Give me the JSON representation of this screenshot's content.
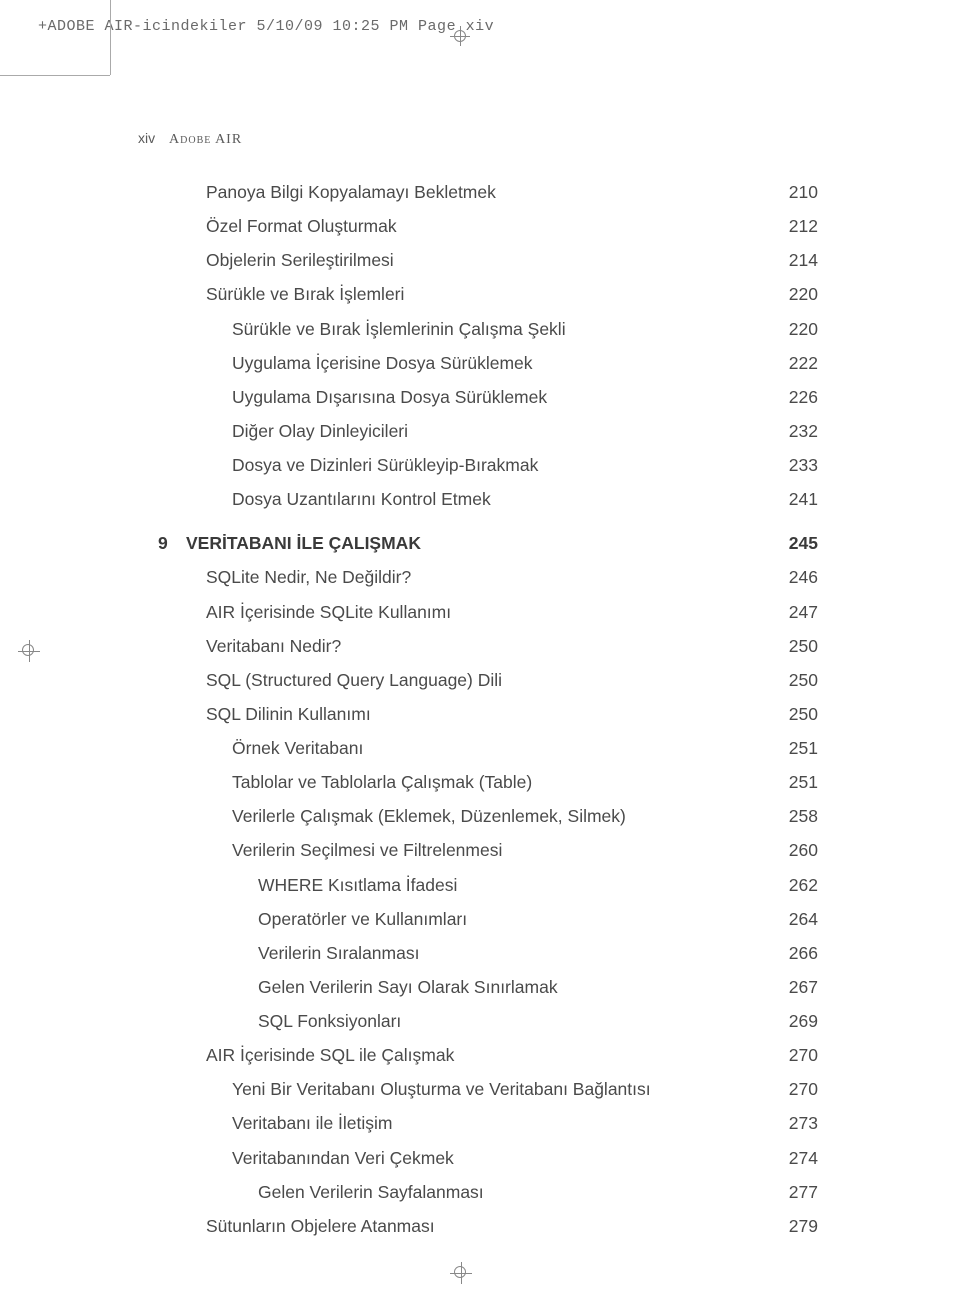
{
  "crop_header": "+ADOBE AIR-icindekiler  5/10/09  10:25 PM  Page xiv",
  "page_number": "xiv",
  "book_title": "Adobe AIR",
  "chapter": {
    "num": "9",
    "title": "VERİTABANI İLE ÇALIŞMAK",
    "page": "245"
  },
  "toc_pre": [
    {
      "label": "Panoya Bilgi Kopyalamayı Bekletmek",
      "page": "210",
      "indent": 1
    },
    {
      "label": "Özel Format Oluşturmak",
      "page": "212",
      "indent": 1
    },
    {
      "label": "Objelerin Serileştirilmesi",
      "page": "214",
      "indent": 1
    },
    {
      "label": "Sürükle ve Bırak İşlemleri",
      "page": "220",
      "indent": 1
    },
    {
      "label": "Sürükle ve Bırak İşlemlerinin Çalışma Şekli",
      "page": "220",
      "indent": 2
    },
    {
      "label": "Uygulama İçerisine Dosya Sürüklemek",
      "page": "222",
      "indent": 2
    },
    {
      "label": "Uygulama Dışarısına Dosya Sürüklemek",
      "page": "226",
      "indent": 2
    },
    {
      "label": "Diğer Olay Dinleyicileri",
      "page": "232",
      "indent": 2
    },
    {
      "label": "Dosya ve Dizinleri Sürükleyip-Bırakmak",
      "page": "233",
      "indent": 2
    },
    {
      "label": "Dosya Uzantılarını Kontrol Etmek",
      "page": "241",
      "indent": 2
    }
  ],
  "toc_post": [
    {
      "label": "SQLite Nedir, Ne Değildir?",
      "page": "246",
      "indent": 1
    },
    {
      "label": "AIR İçerisinde SQLite Kullanımı",
      "page": "247",
      "indent": 1
    },
    {
      "label": "Veritabanı Nedir?",
      "page": "250",
      "indent": 1
    },
    {
      "label": "SQL (Structured Query Language) Dili",
      "page": "250",
      "indent": 1
    },
    {
      "label": "SQL Dilinin Kullanımı",
      "page": "250",
      "indent": 1
    },
    {
      "label": "Örnek Veritabanı",
      "page": "251",
      "indent": 2
    },
    {
      "label": "Tablolar ve Tablolarla Çalışmak (Table)",
      "page": "251",
      "indent": 2
    },
    {
      "label": "Verilerle Çalışmak (Eklemek, Düzenlemek, Silmek)",
      "page": "258",
      "indent": 2
    },
    {
      "label": "Verilerin Seçilmesi ve Filtrelenmesi",
      "page": "260",
      "indent": 2
    },
    {
      "label": "WHERE Kısıtlama İfadesi",
      "page": "262",
      "indent": 3
    },
    {
      "label": "Operatörler ve Kullanımları",
      "page": "264",
      "indent": 3
    },
    {
      "label": "Verilerin Sıralanması",
      "page": "266",
      "indent": 3
    },
    {
      "label": "Gelen Verilerin Sayı Olarak Sınırlamak",
      "page": "267",
      "indent": 3
    },
    {
      "label": "SQL Fonksiyonları",
      "page": "269",
      "indent": 3
    },
    {
      "label": "AIR İçerisinde SQL ile Çalışmak",
      "page": "270",
      "indent": 1
    },
    {
      "label": "Yeni Bir Veritabanı Oluşturma ve Veritabanı Bağlantısı",
      "page": "270",
      "indent": 2
    },
    {
      "label": "Veritabanı ile İletişim",
      "page": "273",
      "indent": 2
    },
    {
      "label": "Veritabanından Veri Çekmek",
      "page": "274",
      "indent": 2
    },
    {
      "label": "Gelen Verilerin Sayfalanması",
      "page": "277",
      "indent": 3
    },
    {
      "label": "Sütunların Objelere Atanması",
      "page": "279",
      "indent": 1
    }
  ]
}
